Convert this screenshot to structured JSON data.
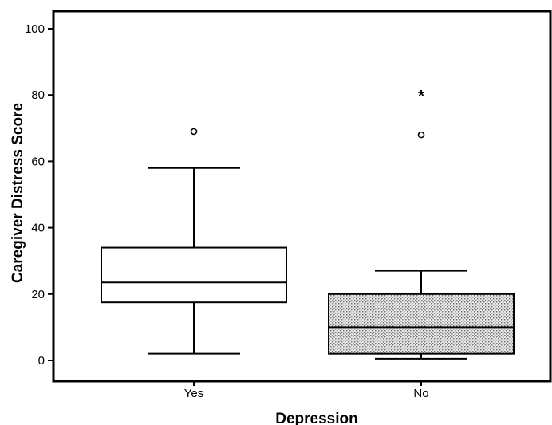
{
  "chart_data": {
    "type": "boxplot",
    "xlabel": "Depression",
    "ylabel": "Caregiver Distress Score",
    "ylim": [
      -6,
      105
    ],
    "yticks": [
      0,
      20,
      40,
      60,
      80,
      100
    ],
    "categories": [
      "Yes",
      "No"
    ],
    "boxes": [
      {
        "category": "Yes",
        "whisker_low": 2,
        "q1": 17.5,
        "median": 23.5,
        "q3": 34,
        "whisker_high": 58,
        "outliers": [
          69
        ],
        "extremes": [],
        "fill": "#ffffff"
      },
      {
        "category": "No",
        "whisker_low": 0.5,
        "q1": 2,
        "median": 10,
        "q3": 20,
        "whisker_high": 27,
        "outliers": [
          68
        ],
        "extremes": [
          80
        ],
        "fill": "#d9d9d9"
      }
    ],
    "grid": false,
    "legend": "none"
  }
}
